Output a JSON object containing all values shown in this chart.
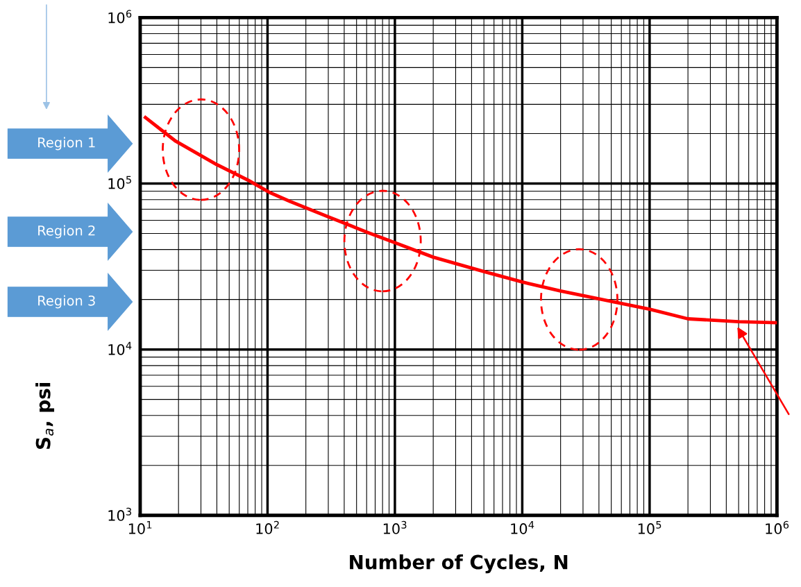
{
  "chart_data": {
    "type": "line",
    "xlabel": "Number of Cycles, N",
    "ylabel": "S$_{a}$, psi",
    "log": "xy",
    "grid": true,
    "marker": "none",
    "line_style": "solid",
    "x": [
      11,
      19,
      40,
      70,
      105,
      150,
      300,
      600,
      1000,
      2000,
      5000,
      10000,
      20000,
      50000,
      100000,
      200000,
      500000,
      1000000
    ],
    "series": [
      {
        "color": "#ff0000",
        "values": [
          250000,
          180000,
          130000,
          105000,
          88000,
          78000,
          63000,
          51000,
          44000,
          36000,
          29500,
          25500,
          22500,
          19500,
          17500,
          15300,
          14700,
          14500
        ]
      }
    ],
    "xlim": [
      10,
      1000000
    ],
    "ylim": [
      1000,
      1000000
    ],
    "xticks": [
      {
        "value": 10,
        "label": "10$^{1}$"
      },
      {
        "value": 100,
        "label": "10$^{2}$"
      },
      {
        "value": 1000,
        "label": "10$^{3}$"
      },
      {
        "value": 10000,
        "label": "10$^{4}$"
      },
      {
        "value": 100000,
        "label": "10$^{5}$"
      },
      {
        "value": 1000000,
        "label": "10$^{6}$"
      }
    ],
    "yticks": [
      {
        "value": 1000,
        "label": "10$^{3}$"
      },
      {
        "value": 10000,
        "label": "10$^{4}$"
      },
      {
        "value": 100000,
        "label": "10$^{5}$"
      },
      {
        "value": 1000000,
        "label": "10$^{6}$"
      }
    ],
    "annotations": [
      "Region 1",
      "Region 2",
      "Region 3"
    ]
  }
}
